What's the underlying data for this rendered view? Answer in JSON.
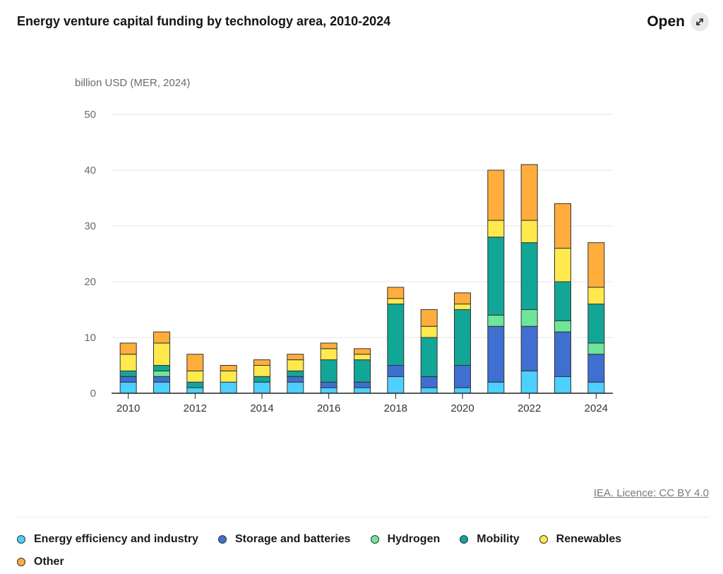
{
  "header": {
    "title": "Energy venture capital funding by technology area, 2010-2024",
    "open_label": "Open",
    "open_icon": "expand-arrows-icon"
  },
  "footer": {
    "licence": "IEA. Licence: CC BY 4.0"
  },
  "chart_data": {
    "type": "bar",
    "stacked": true,
    "title": "Energy venture capital funding by technology area, 2010-2024",
    "ylabel": "billion USD (MER, 2024)",
    "xlabel": "",
    "ylim": [
      0,
      50
    ],
    "yticks": [
      0,
      10,
      20,
      30,
      40,
      50
    ],
    "categories": [
      "2010",
      "2011",
      "2012",
      "2013",
      "2014",
      "2015",
      "2016",
      "2017",
      "2018",
      "2019",
      "2020",
      "2021",
      "2022",
      "2023",
      "2024"
    ],
    "xtick_labels": [
      "2010",
      "2012",
      "2014",
      "2016",
      "2018",
      "2020",
      "2022",
      "2024"
    ],
    "grid": true,
    "legend_position": "bottom",
    "series": [
      {
        "name": "Energy efficiency and industry",
        "color": "#4dcfff",
        "values": [
          2,
          2,
          1,
          2,
          2,
          2,
          1,
          1,
          3,
          1,
          1,
          2,
          4,
          3,
          2
        ]
      },
      {
        "name": "Storage and batteries",
        "color": "#3f6fd1",
        "values": [
          1,
          1,
          0,
          0,
          0,
          1,
          1,
          1,
          2,
          2,
          4,
          10,
          8,
          8,
          5
        ]
      },
      {
        "name": "Hydrogen",
        "color": "#6ee69a",
        "values": [
          0,
          1,
          0,
          0,
          0,
          0,
          0,
          0,
          0,
          0,
          0,
          2,
          3,
          2,
          2
        ]
      },
      {
        "name": "Mobility",
        "color": "#12a697",
        "values": [
          1,
          1,
          1,
          0,
          1,
          1,
          4,
          4,
          11,
          7,
          10,
          14,
          12,
          7,
          7
        ]
      },
      {
        "name": "Renewables",
        "color": "#ffe94d",
        "values": [
          3,
          4,
          2,
          2,
          2,
          2,
          2,
          1,
          1,
          2,
          1,
          3,
          4,
          6,
          3
        ]
      },
      {
        "name": "Other",
        "color": "#ffad3d",
        "values": [
          2,
          2,
          3,
          1,
          1,
          1,
          1,
          1,
          2,
          3,
          2,
          9,
          10,
          8,
          8
        ]
      }
    ]
  }
}
